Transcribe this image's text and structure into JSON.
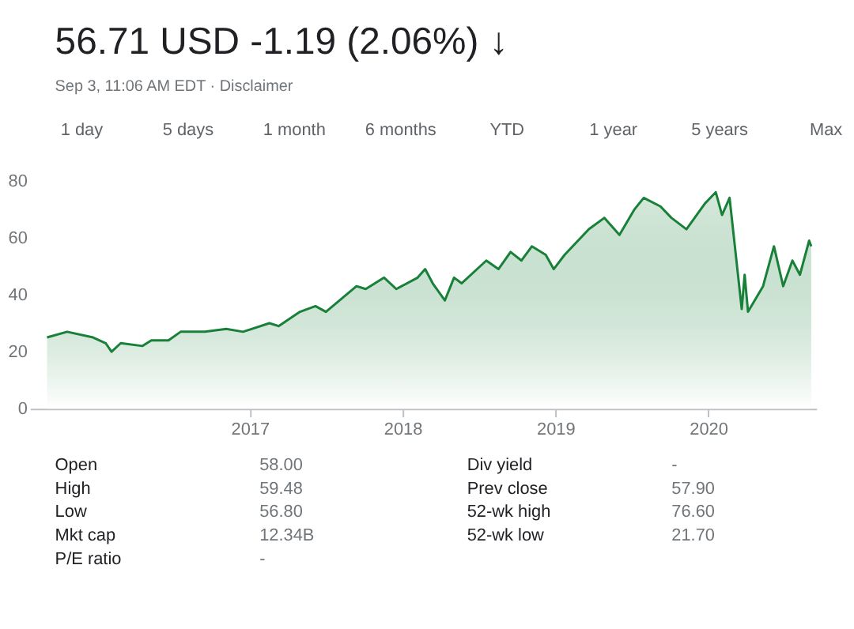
{
  "chart_data": {
    "type": "area",
    "title": "56.71 USD -1.19 (2.06%) ↓",
    "subtitle": "Sep 3, 11:06 AM EDT · Disclaimer",
    "annotations": [
      "1 day",
      "5 days",
      "1 month",
      "6 months",
      "YTD",
      "1 year",
      "5 years",
      "Max",
      "Open",
      "58.00",
      "Div yield",
      "-",
      "High",
      "59.48",
      "Prev close",
      "57.90",
      "Low",
      "56.80",
      "52-wk high",
      "76.60",
      "Mkt cap",
      "12.34B",
      "52-wk low",
      "21.70",
      "P/E ratio",
      "-"
    ],
    "x": [
      "2015-09-05",
      "2015-10-23",
      "2015-12-24",
      "2016-01-23",
      "2016-02-06",
      "2016-02-28",
      "2016-04-20",
      "2016-05-11",
      "2016-06-21",
      "2016-07-20",
      "2016-09-16",
      "2016-11-06",
      "2016-12-16",
      "2017-02-17",
      "2017-03-11",
      "2017-05-01",
      "2017-06-07",
      "2017-07-02",
      "2017-09-13",
      "2017-10-05",
      "2017-11-18",
      "2017-12-17",
      "2018-02-06",
      "2018-02-24",
      "2018-03-14",
      "2018-04-12",
      "2018-05-04",
      "2018-05-22",
      "2018-07-20",
      "2018-08-18",
      "2018-09-16",
      "2018-10-12",
      "2018-11-06",
      "2018-12-09",
      "2018-12-28",
      "2019-01-23",
      "2019-03-22",
      "2019-04-28",
      "2019-06-03",
      "2019-07-09",
      "2019-07-31",
      "2019-09-09",
      "2019-10-05",
      "2019-11-10",
      "2019-12-24",
      "2020-01-19",
      "2020-02-03",
      "2020-02-21",
      "2020-03-21",
      "2020-03-28",
      "2020-04-05",
      "2020-05-11",
      "2020-06-06",
      "2020-06-28",
      "2020-07-20",
      "2020-08-07",
      "2020-08-29",
      "2020-09-03"
    ],
    "series": [
      {
        "color": "#188038",
        "values": [
          25,
          27,
          25,
          23,
          20,
          23,
          22,
          24,
          24,
          27,
          27,
          28,
          27,
          30,
          29,
          34,
          36,
          34,
          43,
          42,
          46,
          42,
          46,
          49,
          44,
          38,
          46,
          44,
          52,
          49,
          55,
          52,
          57,
          54,
          49,
          54,
          63,
          67,
          61,
          70,
          74,
          71,
          67,
          63,
          72,
          76,
          68,
          74,
          35,
          47,
          34,
          43,
          57,
          43,
          52,
          47,
          59,
          57
        ]
      }
    ],
    "xlim": [
      "2015-07-26",
      "2020-09-15"
    ],
    "xticks": [
      "2017",
      "2018",
      "2019",
      "2020"
    ],
    "ylim": [
      0,
      80
    ],
    "yticks": [
      0,
      20,
      40,
      60,
      80
    ],
    "grid": false
  }
}
